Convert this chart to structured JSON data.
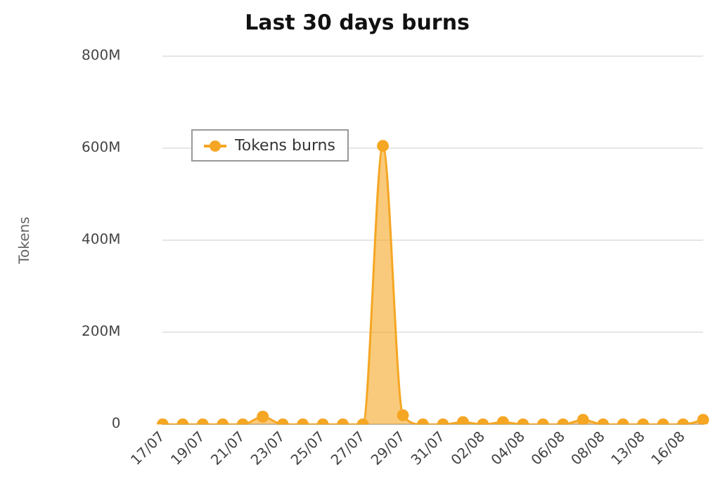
{
  "chart_data": {
    "type": "area",
    "title": "Last 30 days burns",
    "ylabel": "Tokens",
    "categories": [
      "17/07",
      null,
      "19/07",
      null,
      "21/07",
      null,
      "23/07",
      null,
      "25/07",
      null,
      "27/07",
      null,
      "29/07",
      null,
      "31/07",
      null,
      "02/08",
      null,
      "04/08",
      null,
      "06/08",
      null,
      "08/08",
      null,
      "13/08",
      null,
      "16/08",
      null
    ],
    "series": [
      {
        "name": "Tokens burns",
        "color": "#f5a623",
        "values": [
          0,
          0,
          0,
          0,
          0,
          17000000,
          0,
          0,
          0,
          0,
          0,
          605000000,
          20000000,
          0,
          0,
          5000000,
          0,
          5000000,
          0,
          0,
          0,
          10000000,
          0,
          0,
          0,
          0,
          0,
          10000000
        ]
      }
    ],
    "ylim": [
      0,
      800000000
    ],
    "yticks": [
      {
        "value": 0,
        "label": "0"
      },
      {
        "value": 200000000,
        "label": "200M"
      },
      {
        "value": 400000000,
        "label": "400M"
      },
      {
        "value": 600000000,
        "label": "600M"
      },
      {
        "value": 800000000,
        "label": "800M"
      }
    ],
    "grid": "y",
    "legend": "top left",
    "marker": "circle"
  }
}
